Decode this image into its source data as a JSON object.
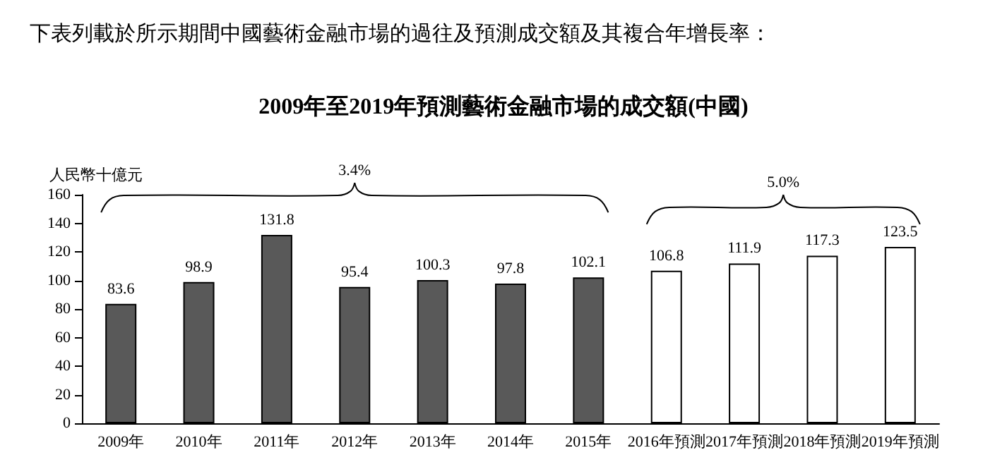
{
  "chart_data": {
    "type": "bar",
    "subtitle": "下表列載於所示期間中國藝術金融市場的過往及預測成交額及其複合年增長率：",
    "title": "2009年至2019年預測藝術金融市場的成交額(中國)",
    "ylabel": "人民幣十億元",
    "categories": [
      "2009年",
      "2010年",
      "2011年",
      "2012年",
      "2013年",
      "2014年",
      "2015年",
      "2016年預測",
      "2017年預測",
      "2018年預測",
      "2019年預測"
    ],
    "values": [
      83.6,
      98.9,
      131.8,
      95.4,
      100.3,
      97.8,
      102.1,
      106.8,
      111.9,
      117.3,
      123.5
    ],
    "colors": [
      "#595959",
      "#595959",
      "#595959",
      "#595959",
      "#595959",
      "#595959",
      "#595959",
      "#ffffff",
      "#ffffff",
      "#ffffff",
      "#ffffff"
    ],
    "ylim": [
      0,
      160
    ],
    "yticks": [
      0,
      20,
      40,
      60,
      80,
      100,
      120,
      140,
      160
    ],
    "data_labels": true,
    "grid": false,
    "annotations": [
      "3.4%",
      "5.0%"
    ]
  }
}
